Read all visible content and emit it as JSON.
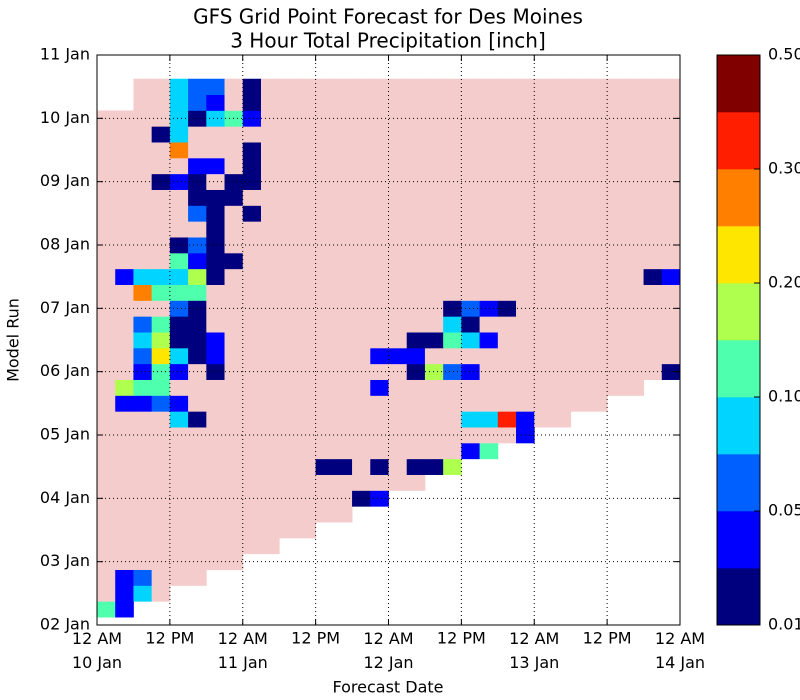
{
  "chart_data": {
    "type": "heatmap",
    "title": "GFS Grid Point Forecast for Des Moines",
    "subtitle": "3 Hour Total Precipitation [inch]",
    "x_label": "Forecast Date",
    "y_label": "Model Run",
    "xlim": [
      0,
      96
    ],
    "ylim": [
      0,
      216
    ],
    "xticks": [
      {
        "value": 0,
        "label": "12 AM\n10 Jan"
      },
      {
        "value": 12,
        "label": "12 PM"
      },
      {
        "value": 24,
        "label": "12 AM\n11 Jan"
      },
      {
        "value": 36,
        "label": "12 PM"
      },
      {
        "value": 48,
        "label": "12 AM\n12 Jan"
      },
      {
        "value": 60,
        "label": "12 PM"
      },
      {
        "value": 72,
        "label": "12 AM\n13 Jan"
      },
      {
        "value": 84,
        "label": "12 PM"
      },
      {
        "value": 96,
        "label": "12 AM\n14 Jan"
      }
    ],
    "yticks": [
      {
        "value": 0,
        "label": "02 Jan"
      },
      {
        "value": 24,
        "label": "03 Jan"
      },
      {
        "value": 48,
        "label": "04 Jan"
      },
      {
        "value": 72,
        "label": "05 Jan"
      },
      {
        "value": 96,
        "label": "06 Jan"
      },
      {
        "value": 120,
        "label": "07 Jan"
      },
      {
        "value": 144,
        "label": "08 Jan"
      },
      {
        "value": 168,
        "label": "09 Jan"
      },
      {
        "value": 192,
        "label": "10 Jan"
      },
      {
        "value": 216,
        "label": "11 Jan"
      }
    ],
    "grid": true,
    "under_color": "#f5cccc",
    "colorbar": {
      "boundaries": [
        0.01,
        0.03,
        0.05,
        0.075,
        0.1,
        0.15,
        0.2,
        0.25,
        0.3,
        0.4,
        0.5
      ],
      "colors": [
        "#00007f",
        "#0000ff",
        "#0060ff",
        "#00d4ff",
        "#4effae",
        "#aeff4e",
        "#ffe600",
        "#ff8000",
        "#ff1e00",
        "#800000"
      ],
      "ticks": [
        0.01,
        0.05,
        {
          "value": 0.1,
          "label": "0.10"
        },
        {
          "value": 0.2,
          "label": "0.20"
        },
        {
          "value": 0.3,
          "label": "0.30"
        },
        {
          "value": 0.5,
          "label": "0.50"
        }
      ]
    },
    "x": [
      0,
      3,
      6,
      9,
      12,
      15,
      18,
      21,
      24,
      27,
      30,
      33,
      36,
      39,
      42,
      45,
      48,
      51,
      54,
      57,
      60,
      63,
      66,
      69,
      72,
      75,
      78,
      81,
      84,
      87,
      90,
      93
    ],
    "y": [
      6,
      12,
      18,
      24,
      30,
      36,
      42,
      48,
      54,
      60,
      66,
      72,
      78,
      84,
      90,
      96,
      102,
      108,
      114,
      120,
      126,
      132,
      138,
      144,
      150,
      156,
      162,
      168,
      174,
      180,
      186,
      192,
      198,
      204
    ],
    "z": [
      [
        0.12,
        0.04,
        null,
        null,
        null,
        null,
        null,
        null,
        null,
        null,
        null,
        null,
        null,
        null,
        null,
        null,
        null,
        null,
        null,
        null,
        null,
        null,
        null,
        null,
        null,
        null,
        null,
        null,
        null,
        null,
        null,
        null
      ],
      [
        0,
        0.04,
        0.09,
        0,
        null,
        null,
        null,
        null,
        null,
        null,
        null,
        null,
        null,
        null,
        null,
        null,
        null,
        null,
        null,
        null,
        null,
        null,
        null,
        null,
        null,
        null,
        null,
        null,
        null,
        null,
        null,
        null
      ],
      [
        0,
        0.04,
        0.06,
        0,
        0,
        0,
        null,
        null,
        null,
        null,
        null,
        null,
        null,
        null,
        null,
        null,
        null,
        null,
        null,
        null,
        null,
        null,
        null,
        null,
        null,
        null,
        null,
        null,
        null,
        null,
        null,
        null
      ],
      [
        0,
        0,
        0,
        0,
        0,
        0,
        0,
        0,
        null,
        null,
        null,
        null,
        null,
        null,
        null,
        null,
        null,
        null,
        null,
        null,
        null,
        null,
        null,
        null,
        null,
        null,
        null,
        null,
        null,
        null,
        null,
        null
      ],
      [
        0,
        0,
        0,
        0,
        0,
        0,
        0,
        0,
        0,
        0,
        null,
        null,
        null,
        null,
        null,
        null,
        null,
        null,
        null,
        null,
        null,
        null,
        null,
        null,
        null,
        null,
        null,
        null,
        null,
        null,
        null,
        null
      ],
      [
        0,
        0,
        0,
        0,
        0,
        0,
        0,
        0,
        0,
        0,
        0,
        0,
        null,
        null,
        null,
        null,
        null,
        null,
        null,
        null,
        null,
        null,
        null,
        null,
        null,
        null,
        null,
        null,
        null,
        null,
        null,
        null
      ],
      [
        0,
        0,
        0,
        0,
        0,
        0,
        0,
        0,
        0,
        0,
        0,
        0,
        0,
        0,
        null,
        null,
        null,
        null,
        null,
        null,
        null,
        null,
        null,
        null,
        null,
        null,
        null,
        null,
        null,
        null,
        null,
        null
      ],
      [
        0,
        0,
        0,
        0,
        0,
        0,
        0,
        0,
        0,
        0,
        0,
        0,
        0,
        0,
        0.02,
        0.04,
        null,
        null,
        null,
        null,
        null,
        null,
        null,
        null,
        null,
        null,
        null,
        null,
        null,
        null,
        null,
        null
      ],
      [
        0,
        0,
        0,
        0,
        0,
        0,
        0,
        0,
        0,
        0,
        0,
        0,
        0,
        0,
        0,
        0,
        0,
        0,
        null,
        null,
        null,
        null,
        null,
        null,
        null,
        null,
        null,
        null,
        null,
        null,
        null,
        null
      ],
      [
        0,
        0,
        0,
        0,
        0,
        0,
        0,
        0,
        0,
        0,
        0,
        0,
        0.02,
        0.02,
        0,
        0.02,
        0,
        0.02,
        0.02,
        0.17,
        null,
        null,
        null,
        null,
        null,
        null,
        null,
        null,
        null,
        null,
        null,
        null
      ],
      [
        0,
        0,
        0,
        0,
        0,
        0,
        0,
        0,
        0,
        0,
        0,
        0,
        0,
        0,
        0,
        0,
        0,
        0,
        0,
        0,
        0.04,
        0.12,
        null,
        null,
        null,
        null,
        null,
        null,
        null,
        null,
        null,
        null
      ],
      [
        0,
        0,
        0,
        0,
        0,
        0,
        0,
        0,
        0,
        0,
        0,
        0,
        0,
        0,
        0,
        0,
        0,
        0,
        0,
        0,
        0,
        0,
        0,
        0.04,
        null,
        null,
        null,
        null,
        null,
        null,
        null,
        null
      ],
      [
        0,
        0,
        0,
        0,
        0.09,
        0.02,
        0,
        0,
        0,
        0,
        0,
        0,
        0,
        0,
        0,
        0,
        0,
        0,
        0,
        0,
        0.09,
        0.09,
        0.35,
        0.04,
        0,
        0,
        null,
        null,
        null,
        null,
        null,
        null
      ],
      [
        0,
        0.04,
        0.04,
        0.06,
        0.04,
        0,
        0,
        0,
        0,
        0,
        0,
        0,
        0,
        0,
        0,
        0,
        0,
        0,
        0,
        0,
        0,
        0,
        0,
        0,
        0,
        0,
        0,
        0,
        null,
        null,
        null,
        null
      ],
      [
        0,
        0.17,
        0.12,
        0.12,
        0,
        0,
        0,
        0,
        0,
        0,
        0,
        0,
        0,
        0,
        0,
        0.04,
        0,
        0,
        0,
        0,
        0,
        0,
        0,
        0,
        0,
        0,
        0,
        0,
        0,
        0,
        null,
        null
      ],
      [
        0,
        0,
        0.04,
        0.12,
        0.04,
        0,
        0.02,
        0,
        0,
        0,
        0,
        0,
        0,
        0,
        0,
        0,
        0,
        0.02,
        0.17,
        0.06,
        0.04,
        0,
        0,
        0,
        0,
        0,
        0,
        0,
        0,
        0,
        0,
        0.02
      ],
      [
        0,
        0,
        0.06,
        0.22,
        0.09,
        0.02,
        0.04,
        0,
        0,
        0,
        0,
        0,
        0,
        0,
        0,
        0.04,
        0.04,
        0.04,
        0,
        0,
        0,
        0,
        0,
        0,
        0,
        0,
        0,
        0,
        0,
        0,
        0,
        0
      ],
      [
        0,
        0,
        0.09,
        0.17,
        0.02,
        0.02,
        0.04,
        0,
        0,
        0,
        0,
        0,
        0,
        0,
        0,
        0,
        0,
        0.02,
        0.02,
        0.12,
        0.09,
        0.04,
        0,
        0,
        0,
        0,
        0,
        0,
        0,
        0,
        0,
        0
      ],
      [
        0,
        0,
        0.06,
        0.12,
        0.02,
        0.02,
        0,
        0,
        0,
        0,
        0,
        0,
        0,
        0,
        0,
        0,
        0,
        0,
        0,
        0.09,
        0.02,
        0,
        0,
        0,
        0,
        0,
        0,
        0,
        0,
        0,
        0,
        0
      ],
      [
        0,
        0,
        0,
        0,
        0.06,
        0.02,
        0,
        0,
        0,
        0,
        0,
        0,
        0,
        0,
        0,
        0,
        0,
        0,
        0,
        0.02,
        0.06,
        0.04,
        0.02,
        0,
        0,
        0,
        0,
        0,
        0,
        0,
        0,
        0
      ],
      [
        0,
        0,
        0.27,
        0.12,
        0.12,
        0.12,
        0,
        0,
        0,
        0,
        0,
        0,
        0,
        0,
        0,
        0,
        0,
        0,
        0,
        0,
        0,
        0,
        0,
        0,
        0,
        0,
        0,
        0,
        0,
        0,
        0,
        0
      ],
      [
        0,
        0.04,
        0.09,
        0.09,
        0.09,
        0.17,
        0.02,
        0,
        0,
        0,
        0,
        0,
        0,
        0,
        0,
        0,
        0,
        0,
        0,
        0,
        0,
        0,
        0,
        0,
        0,
        0,
        0,
        0,
        0,
        0,
        0.02,
        0.04
      ],
      [
        0,
        0,
        0,
        0,
        0.12,
        0.04,
        0.02,
        0.02,
        0,
        0,
        0,
        0,
        0,
        0,
        0,
        0,
        0,
        0,
        0,
        0,
        0,
        0,
        0,
        0,
        0,
        0,
        0,
        0,
        0,
        0,
        0,
        0
      ],
      [
        0,
        0,
        0,
        0,
        0.02,
        0.06,
        0.02,
        0,
        0,
        0,
        0,
        0,
        0,
        0,
        0,
        0,
        0,
        0,
        0,
        0,
        0,
        0,
        0,
        0,
        0,
        0,
        0,
        0,
        0,
        0,
        0,
        0
      ],
      [
        0,
        0,
        0,
        0,
        0,
        0,
        0.02,
        0,
        0,
        0,
        0,
        0,
        0,
        0,
        0,
        0,
        0,
        0,
        0,
        0,
        0,
        0,
        0,
        0,
        0,
        0,
        0,
        0,
        0,
        0,
        0,
        0
      ],
      [
        0,
        0,
        0,
        0,
        0,
        0.06,
        0.02,
        0,
        0.02,
        0,
        0,
        0,
        0,
        0,
        0,
        0,
        0,
        0,
        0,
        0,
        0,
        0,
        0,
        0,
        0,
        0,
        0,
        0,
        0,
        0,
        0,
        0
      ],
      [
        0,
        0,
        0,
        0,
        0,
        0.02,
        0.02,
        0.02,
        0,
        0,
        0,
        0,
        0,
        0,
        0,
        0,
        0,
        0,
        0,
        0,
        0,
        0,
        0,
        0,
        0,
        0,
        0,
        0,
        0,
        0,
        0,
        0
      ],
      [
        0,
        0,
        0,
        0.02,
        0.04,
        0.02,
        0,
        0.02,
        0.02,
        0,
        0,
        0,
        0,
        0,
        0,
        0,
        0,
        0,
        0,
        0,
        0,
        0,
        0,
        0,
        0,
        0,
        0,
        0,
        0,
        0,
        0,
        0
      ],
      [
        0,
        0,
        0,
        0,
        0,
        0.04,
        0.04,
        0,
        0.02,
        0,
        0,
        0,
        0,
        0,
        0,
        0,
        0,
        0,
        0,
        0,
        0,
        0,
        0,
        0,
        0,
        0,
        0,
        0,
        0,
        0,
        0,
        0
      ],
      [
        0,
        0,
        0,
        0,
        0.27,
        0,
        0,
        0,
        0.02,
        0,
        0,
        0,
        0,
        0,
        0,
        0,
        0,
        0,
        0,
        0,
        0,
        0,
        0,
        0,
        0,
        0,
        0,
        0,
        0,
        0,
        0,
        0
      ],
      [
        0,
        0,
        0,
        0.02,
        0.09,
        0,
        0,
        0,
        0,
        0,
        0,
        0,
        0,
        0,
        0,
        0,
        0,
        0,
        0,
        0,
        0,
        0,
        0,
        0,
        0,
        0,
        0,
        0,
        0,
        0,
        0,
        0
      ],
      [
        0,
        0,
        0,
        0,
        0.09,
        0.02,
        0.09,
        0.12,
        0.04,
        0,
        0,
        0,
        0,
        0,
        0,
        0,
        0,
        0,
        0,
        0,
        0,
        0,
        0,
        0,
        0,
        0,
        0,
        0,
        0,
        0,
        0,
        0
      ],
      [
        null,
        null,
        0,
        0,
        0.09,
        0.06,
        0.04,
        0,
        0.02,
        0,
        0,
        0,
        0,
        0,
        0,
        0,
        0,
        0,
        0,
        0,
        0,
        0,
        0,
        0,
        0,
        0,
        0,
        0,
        0,
        0,
        0,
        0
      ],
      [
        null,
        null,
        0,
        0,
        0.09,
        0.06,
        0.06,
        0,
        0.02,
        0,
        0,
        0,
        0,
        0,
        0,
        0,
        0,
        0,
        0,
        0,
        0,
        0,
        0,
        0,
        0,
        0,
        0,
        0,
        0,
        0,
        0,
        0
      ]
    ]
  }
}
